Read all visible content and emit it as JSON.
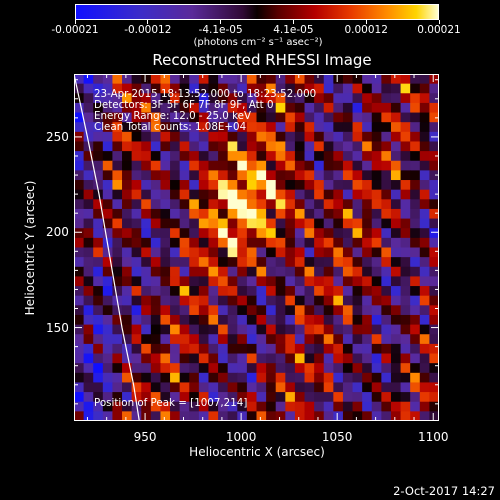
{
  "colorbar": {
    "ticks": [
      "-0.00021",
      "-0.00012",
      "-4.1e-05",
      "4.1e-05",
      "0.00012",
      "0.00021"
    ],
    "unit": "(photons cm⁻² s⁻¹ asec⁻²)"
  },
  "chart_data": {
    "type": "heatmap",
    "title": "Reconstructed RHESSI Image",
    "xlabel": "Heliocentric X (arcsec)",
    "ylabel": "Heliocentric Y (arcsec)",
    "xlim": [
      913,
      1103
    ],
    "ylim": [
      101,
      283
    ],
    "xticks": [
      950,
      1000,
      1050,
      1100
    ],
    "yticks": [
      150,
      200,
      250
    ],
    "zlim": [
      -0.00021,
      0.00021
    ],
    "peak": [
      1007,
      214
    ],
    "limb_curve": [
      [
        913,
        283
      ],
      [
        920,
        250
      ],
      [
        926,
        220
      ],
      [
        932,
        185
      ],
      [
        938,
        150
      ],
      [
        944,
        120
      ],
      [
        947,
        101
      ]
    ],
    "annotations": [
      "23-Apr-2015 18:13:52.000 to 18:23:52.000",
      "Detectors: 3F 5F 6F 7F 8F 9F, Att 0",
      "Energy Range: 12.0 - 25.0 keV",
      "Clean     Total counts: 1.08E+04"
    ],
    "peak_label": "Position of Peak = [1007,214]"
  },
  "timestamp": "2-Oct-2017 14:27"
}
